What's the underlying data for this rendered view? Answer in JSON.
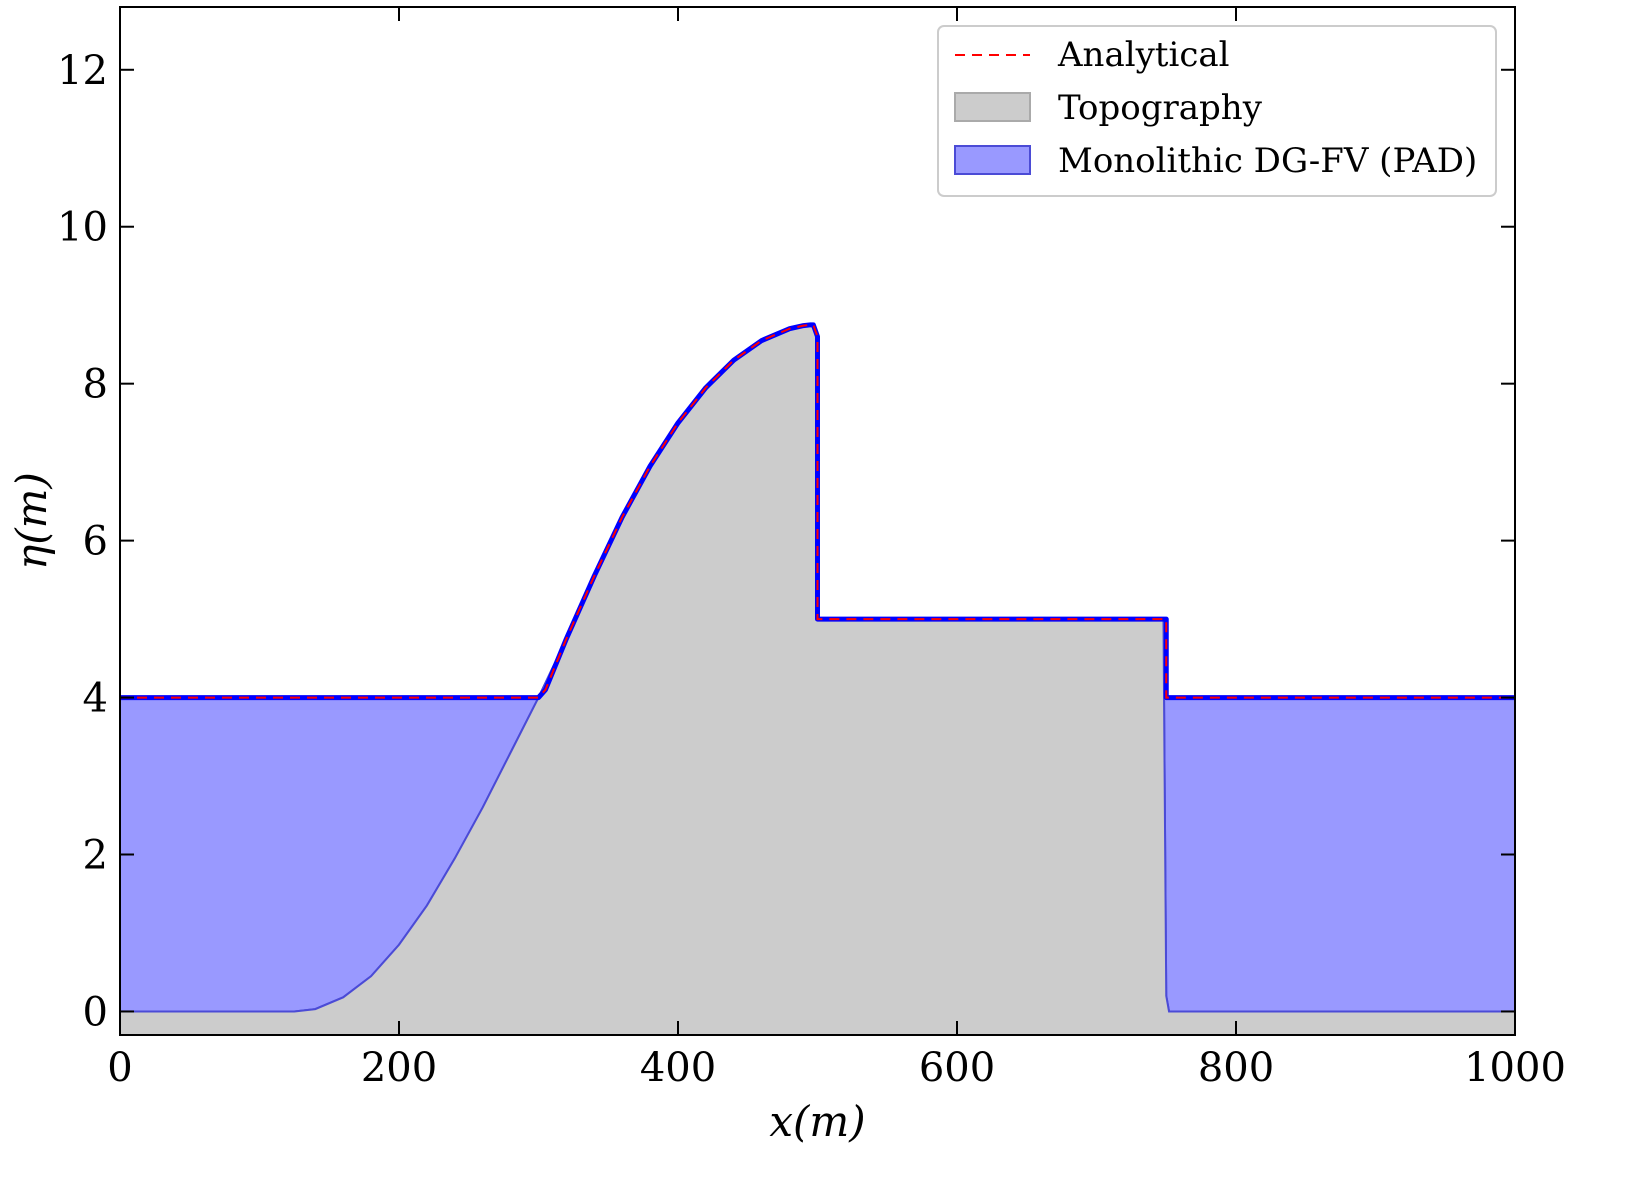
{
  "chart_data": {
    "type": "area",
    "title": "",
    "xlabel": "x(m)",
    "ylabel": "η(m)",
    "xlim": [
      0,
      1000
    ],
    "ylim": [
      -0.3,
      12.8
    ],
    "xticks": [
      0,
      200,
      400,
      600,
      800,
      1000
    ],
    "yticks": [
      0,
      2,
      4,
      6,
      8,
      10,
      12
    ],
    "xtick_labels": [
      "0",
      "200",
      "400",
      "600",
      "800",
      "1000"
    ],
    "ytick_labels": [
      "0",
      "2",
      "4",
      "6",
      "8",
      "10",
      "12"
    ],
    "grid": false,
    "legend_position": "top-right",
    "colors": {
      "analytical": "#ff0000",
      "topography_fill": "#cccccc",
      "topography_edge": "#aaaaaa",
      "water_fill": "#9999ff",
      "water_edge": "#4b4bd6",
      "numerical_line": "#0000ff"
    },
    "series": [
      {
        "name": "Analytical",
        "style": "dashed",
        "x": [
          0,
          300,
          305,
          320,
          340,
          360,
          380,
          400,
          420,
          440,
          460,
          480,
          490,
          495,
          497,
          500,
          500,
          600,
          700,
          750,
          750,
          800,
          900,
          1000
        ],
        "y": [
          4.0,
          4.0,
          4.1,
          4.75,
          5.55,
          6.3,
          6.95,
          7.5,
          7.95,
          8.3,
          8.55,
          8.7,
          8.74,
          8.75,
          8.75,
          8.6,
          5.0,
          5.0,
          5.0,
          5.0,
          4.0,
          4.0,
          4.0,
          4.0
        ]
      },
      {
        "name": "Topography",
        "style": "filled",
        "x": [
          0,
          125,
          140,
          160,
          180,
          200,
          220,
          240,
          260,
          280,
          300,
          320,
          340,
          360,
          380,
          400,
          420,
          440,
          460,
          480,
          490,
          495,
          497,
          500,
          500,
          600,
          700,
          748,
          750,
          752,
          800,
          900,
          1000
        ],
        "y": [
          0,
          0,
          0.03,
          0.18,
          0.45,
          0.85,
          1.35,
          1.95,
          2.6,
          3.3,
          4.0,
          4.75,
          5.55,
          6.3,
          6.95,
          7.5,
          7.95,
          8.3,
          8.55,
          8.7,
          8.74,
          8.75,
          8.75,
          8.6,
          5.0,
          5.0,
          5.0,
          5.0,
          0.2,
          0,
          0,
          0,
          0
        ]
      },
      {
        "name": "Monolithic DG-FV (PAD)",
        "style": "filled",
        "x": [
          0,
          300,
          305,
          320,
          340,
          360,
          380,
          400,
          420,
          440,
          460,
          480,
          490,
          495,
          497,
          500,
          500,
          600,
          700,
          750,
          750,
          800,
          900,
          1000
        ],
        "y": [
          4.0,
          4.0,
          4.1,
          4.75,
          5.55,
          6.3,
          6.95,
          7.5,
          7.95,
          8.3,
          8.55,
          8.7,
          8.74,
          8.75,
          8.75,
          8.6,
          5.0,
          5.0,
          5.0,
          5.0,
          4.0,
          4.0,
          4.0,
          4.0
        ]
      }
    ]
  }
}
